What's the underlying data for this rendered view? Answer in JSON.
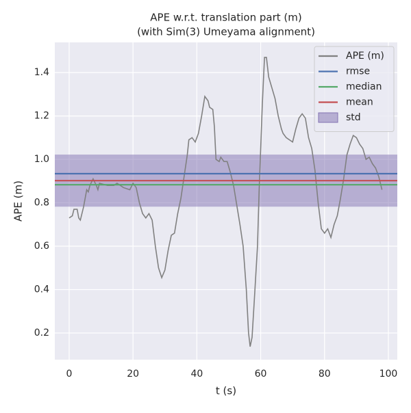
{
  "chart_data": {
    "type": "line",
    "title": "APE w.r.t. translation part (m)",
    "subtitle": "(with Sim(3) Umeyama alignment)",
    "x_label": "t (s)",
    "y_label": "APE (m)",
    "xlim": [
      -4.5,
      102.8
    ],
    "ylim": [
      0.077,
      1.539
    ],
    "xticks": [
      0,
      20,
      40,
      60,
      80,
      100
    ],
    "yticks": [
      0.2,
      0.4,
      0.6,
      0.8,
      {
        "value": 1.0,
        "label": "1.0"
      },
      1.2,
      1.4
    ],
    "grid": true,
    "legend": "upper right",
    "series": [
      {
        "name": "APE (m)",
        "color": "#808080",
        "x": [
          0,
          1,
          1.5,
          2.5,
          3,
          3.5,
          4.5,
          5.5,
          6,
          6.5,
          7.5,
          8.5,
          9,
          9.5,
          12,
          14,
          15,
          17,
          19,
          20,
          21,
          22,
          23,
          24,
          25,
          26,
          27,
          28,
          29,
          30,
          31,
          32,
          33,
          34,
          35,
          36,
          37,
          37.5,
          38.5,
          39.5,
          40.5,
          41.5,
          42.5,
          43.5,
          44,
          45,
          45.5,
          46,
          47,
          47.5,
          48.5,
          49.5,
          50.5,
          51.5,
          52.5,
          53.5,
          54.5,
          55.5,
          56.2,
          56.7,
          57.3,
          58,
          59,
          59.5,
          60.5,
          61.2,
          61.8,
          62.5,
          63.5,
          64.5,
          65.5,
          66.5,
          67,
          68,
          69,
          70,
          71,
          72,
          73,
          74,
          75,
          76,
          77,
          78,
          79,
          80,
          81,
          82,
          83,
          84,
          85,
          86,
          87,
          88,
          89,
          90,
          91,
          92,
          93,
          94,
          95,
          96,
          97,
          98
        ],
        "values": [
          0.73,
          0.74,
          0.77,
          0.77,
          0.73,
          0.72,
          0.78,
          0.86,
          0.85,
          0.88,
          0.91,
          0.88,
          0.86,
          0.89,
          0.88,
          0.88,
          0.89,
          0.87,
          0.86,
          0.89,
          0.87,
          0.8,
          0.75,
          0.73,
          0.75,
          0.72,
          0.6,
          0.5,
          0.455,
          0.49,
          0.58,
          0.65,
          0.66,
          0.75,
          0.82,
          0.92,
          1.02,
          1.09,
          1.1,
          1.08,
          1.12,
          1.2,
          1.29,
          1.27,
          1.24,
          1.23,
          1.15,
          1.0,
          0.99,
          1.01,
          0.99,
          0.99,
          0.94,
          0.88,
          0.79,
          0.7,
          0.6,
          0.4,
          0.2,
          0.137,
          0.18,
          0.35,
          0.6,
          0.85,
          1.25,
          1.47,
          1.47,
          1.38,
          1.33,
          1.28,
          1.2,
          1.14,
          1.12,
          1.1,
          1.09,
          1.08,
          1.14,
          1.19,
          1.21,
          1.19,
          1.1,
          1.05,
          0.95,
          0.8,
          0.68,
          0.66,
          0.68,
          0.64,
          0.7,
          0.74,
          0.82,
          0.91,
          1.02,
          1.07,
          1.11,
          1.1,
          1.07,
          1.05,
          1.0,
          1.01,
          0.98,
          0.96,
          0.92,
          0.86
        ]
      }
    ],
    "stats": [
      {
        "name": "rmse",
        "color": "#4c72b0",
        "value": 0.934
      },
      {
        "name": "median",
        "color": "#55a868",
        "value": 0.883
      },
      {
        "name": "mean",
        "color": "#c44e52",
        "value": 0.902
      }
    ],
    "std": {
      "name": "std",
      "color": "#8172b2",
      "value": 0.12
    }
  }
}
